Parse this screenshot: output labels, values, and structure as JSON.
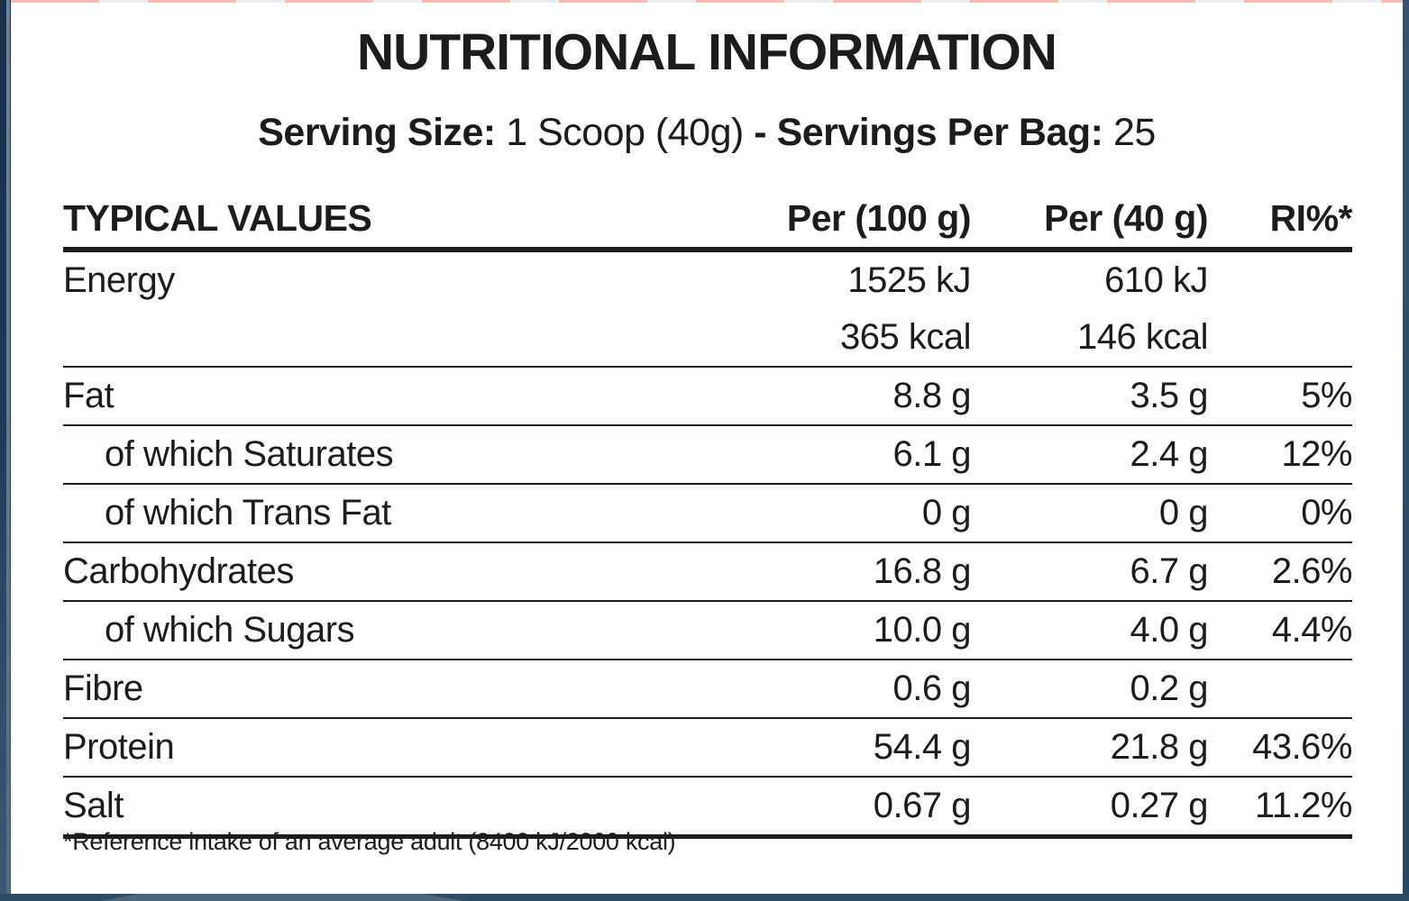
{
  "page": {
    "title": "NUTRITIONAL INFORMATION"
  },
  "serving": {
    "label1": "Serving Size:",
    "value1": "1 Scoop (40g)",
    "dash": "-",
    "label2": "Servings Per Bag:",
    "value2": "25"
  },
  "table": {
    "headers": {
      "col1": "TYPICAL VALUES",
      "col2": "Per (100 g)",
      "col3": "Per (40 g)",
      "col4": "RI%*"
    },
    "rows": [
      {
        "label": "Energy",
        "per100": "1525 kJ",
        "per40": "610 kJ",
        "ri": ""
      },
      {
        "label": "",
        "per100": "365 kcal",
        "per40": "146 kcal",
        "ri": ""
      },
      {
        "label": "Fat",
        "per100": "8.8 g",
        "per40": "3.5 g",
        "ri": "5%"
      },
      {
        "label": "of which Saturates",
        "per100": "6.1 g",
        "per40": "2.4 g",
        "ri": "12%"
      },
      {
        "label": "of which Trans Fat",
        "per100": "0 g",
        "per40": "0 g",
        "ri": "0%"
      },
      {
        "label": "Carbohydrates",
        "per100": "16.8 g",
        "per40": "6.7 g",
        "ri": "2.6%"
      },
      {
        "label": "of which Sugars",
        "per100": "10.0 g",
        "per40": "4.0 g",
        "ri": "4.4%"
      },
      {
        "label": "Fibre",
        "per100": "0.6 g",
        "per40": "0.2 g",
        "ri": ""
      },
      {
        "label": "Protein",
        "per100": "54.4 g",
        "per40": "21.8 g",
        "ri": "43.6%"
      },
      {
        "label": "Salt",
        "per100": "0.67 g",
        "per40": "0.27 g",
        "ri": "11.2%"
      }
    ]
  },
  "footnote": "*Reference intake of an average adult (8400 kJ/2000 kcal)",
  "colors": {
    "card_white": "#ffffff",
    "text_black": "#1c1c1a",
    "rule_black": "#1c1c1a",
    "background_navy": "#24455f",
    "edge_navy_dark": "#1d3a53",
    "edge_blue_light": "#5d7a94",
    "bottom_band_navy": "#2c4b64",
    "bottom_band_highlight": "#4d6679",
    "top_edge_salmon": "#f3bfb2",
    "top_edge_pale": "#e9eef1"
  }
}
